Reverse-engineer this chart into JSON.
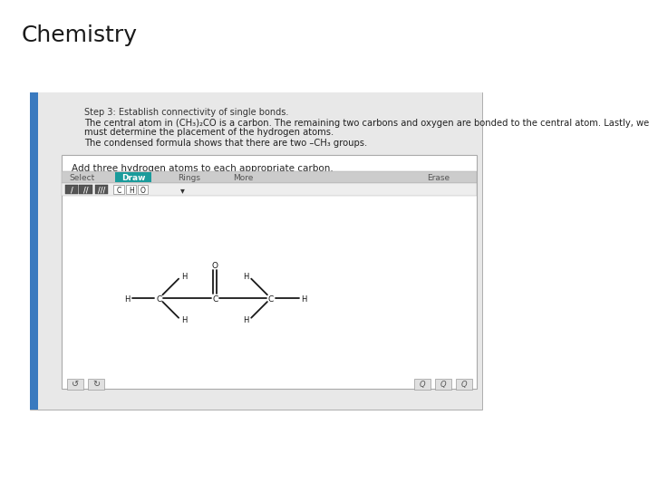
{
  "title": "Chemistry",
  "title_fontsize": 18,
  "title_color": "#1a1a1a",
  "bg_color": "#ffffff",
  "step_text": "Step 3: Establish connectivity of single bonds.",
  "para1_line1": "The central atom in (CH₃)₂CO is a carbon. The remaining two carbons and oxygen are bonded to the central atom. Lastly, we",
  "para1_line2": "must determine the placement of the hydrogen atoms.",
  "para2": "The condensed formula shows that there are two –CH₃ groups.",
  "instruction": "Add three hydrogen atoms to each appropriate carbon.",
  "toolbar_items": [
    "Select",
    "Draw",
    "Rings",
    "More",
    "Erase"
  ],
  "toolbar_active": "Draw",
  "toolbar_active_color": "#1a9b9b",
  "left_blue_bar": "#3a7abf",
  "text_color": "#222222",
  "panel_outer_bg": "#c8c8c8",
  "panel_inner_bg": "#e8e8e8",
  "editor_bg": "#ffffff",
  "toolbar_bg": "#d8d8d8"
}
